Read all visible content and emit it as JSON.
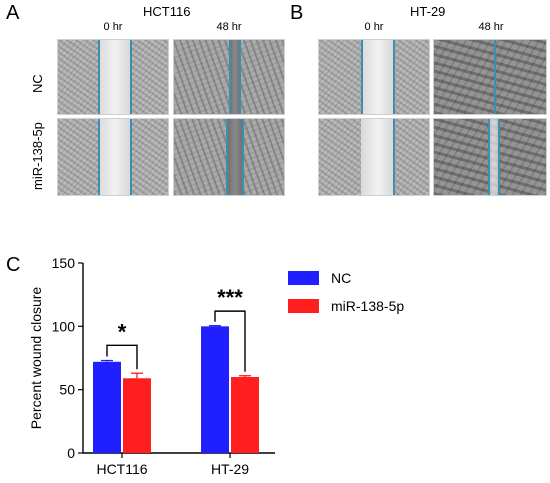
{
  "figure": {
    "panels": {
      "a": {
        "letter": "A",
        "title": "HCT116",
        "time_left": "0 hr",
        "time_right": "48 hr"
      },
      "b": {
        "letter": "B",
        "title": "HT-29",
        "time_left": "0 hr",
        "time_right": "48 hr"
      },
      "c": {
        "letter": "C"
      }
    },
    "row_labels": [
      "NC",
      "miR-138-5p"
    ],
    "colors": {
      "nc": "#1f1fff",
      "mir": "#ff1f1f",
      "edge_marker": "#3b8fb4"
    }
  },
  "chart_data": {
    "type": "bar",
    "categories": [
      "HCT116",
      "HT-29"
    ],
    "series": [
      {
        "name": "NC",
        "values": [
          72,
          100
        ],
        "errors": [
          1,
          0.5
        ],
        "color": "#1f1fff"
      },
      {
        "name": "miR-138-5p",
        "values": [
          59,
          60
        ],
        "errors": [
          4,
          1
        ],
        "color": "#ff1f1f"
      }
    ],
    "ylabel": "Percent wound closure",
    "xlabel": "",
    "ylim": [
      0,
      150
    ],
    "yticks": [
      0,
      50,
      100,
      150
    ],
    "significance": [
      "*",
      "***"
    ],
    "legend": "top-right",
    "grid": false
  }
}
